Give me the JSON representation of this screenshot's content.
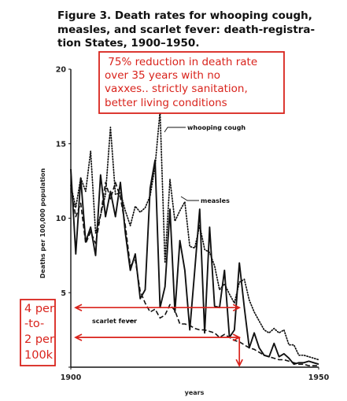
{
  "chart_data": {
    "type": "line",
    "title_lines": [
      "Figure 3.  Death rates for whooping cough,",
      "measles, and scarlet fever: death-registra-",
      "tion States, 1900–1950."
    ],
    "xlabel": "years",
    "ylabel": "Deaths per 100,000 population",
    "xlim": [
      1900,
      1950
    ],
    "ylim": [
      0,
      20
    ],
    "x_ticks": [
      1900,
      1950
    ],
    "y_ticks": [
      0,
      5,
      10,
      15,
      20
    ],
    "grid": false,
    "series": [
      {
        "name": "whooping cough",
        "style": "dotted",
        "x": [
          1900,
          1901,
          1902,
          1903,
          1904,
          1905,
          1906,
          1907,
          1908,
          1909,
          1910,
          1911,
          1912,
          1913,
          1914,
          1915,
          1916,
          1917,
          1918,
          1919,
          1920,
          1921,
          1922,
          1923,
          1924,
          1925,
          1926,
          1927,
          1928,
          1929,
          1930,
          1931,
          1932,
          1933,
          1934,
          1935,
          1936,
          1937,
          1938,
          1939,
          1940,
          1941,
          1942,
          1943,
          1944,
          1945,
          1946,
          1947,
          1948,
          1949,
          1950
        ],
        "values": [
          12.2,
          10.7,
          12.7,
          11.8,
          14.5,
          9.0,
          10.2,
          11.6,
          16.1,
          11.6,
          11.7,
          10.5,
          9.5,
          10.8,
          10.4,
          10.7,
          11.5,
          13.5,
          17.2,
          7.0,
          12.6,
          9.8,
          10.5,
          11.1,
          8.1,
          8.0,
          9.5,
          7.9,
          7.7,
          6.8,
          5.2,
          5.6,
          4.9,
          4.3,
          5.7,
          5.9,
          4.5,
          3.7,
          3.1,
          2.5,
          2.3,
          2.6,
          2.3,
          2.5,
          1.5,
          1.5,
          0.8,
          0.8,
          0.7,
          0.6,
          0.5
        ]
      },
      {
        "name": "measles",
        "style": "solid",
        "x": [
          1900,
          1901,
          1902,
          1903,
          1904,
          1905,
          1906,
          1907,
          1908,
          1909,
          1910,
          1911,
          1912,
          1913,
          1914,
          1915,
          1916,
          1917,
          1918,
          1919,
          1920,
          1921,
          1922,
          1923,
          1924,
          1925,
          1926,
          1927,
          1928,
          1929,
          1930,
          1931,
          1932,
          1933,
          1934,
          1935,
          1936,
          1937,
          1938,
          1939,
          1940,
          1941,
          1942,
          1943,
          1944,
          1945,
          1946,
          1947,
          1948,
          1949,
          1950
        ],
        "values": [
          13.3,
          7.6,
          12.7,
          8.4,
          9.4,
          7.5,
          12.9,
          10.1,
          11.8,
          10.1,
          12.4,
          9.0,
          6.5,
          7.6,
          4.6,
          5.2,
          12.0,
          13.9,
          4.0,
          5.4,
          10.6,
          3.7,
          8.5,
          6.5,
          2.5,
          6.5,
          10.6,
          2.3,
          9.4,
          4.1,
          4.0,
          6.5,
          2.0,
          2.5,
          7.0,
          4.0,
          1.3,
          2.3,
          1.3,
          0.8,
          0.7,
          1.6,
          0.7,
          0.9,
          0.6,
          0.2,
          0.3,
          0.3,
          0.4,
          0.3,
          0.2
        ]
      },
      {
        "name": "scarlet fever",
        "style": "dashed",
        "x": [
          1900,
          1901,
          1902,
          1903,
          1904,
          1905,
          1906,
          1907,
          1908,
          1909,
          1910,
          1911,
          1912,
          1913,
          1914,
          1915,
          1916,
          1917,
          1918,
          1919,
          1920,
          1921,
          1922,
          1923,
          1924,
          1925,
          1926,
          1927,
          1928,
          1929,
          1930,
          1931,
          1932,
          1933,
          1934,
          1935,
          1936,
          1937,
          1938,
          1939,
          1940,
          1941,
          1942,
          1943,
          1944,
          1945,
          1946,
          1947,
          1948,
          1949,
          1950
        ],
        "values": [
          12.0,
          10.1,
          11.0,
          8.3,
          9.1,
          8.3,
          10.2,
          12.4,
          11.3,
          12.4,
          11.4,
          9.5,
          6.8,
          7.2,
          5.1,
          4.3,
          3.7,
          3.9,
          3.3,
          3.5,
          4.2,
          3.8,
          2.9,
          2.9,
          2.8,
          2.6,
          2.5,
          2.5,
          2.4,
          2.3,
          2.0,
          2.2,
          2.0,
          1.8,
          1.7,
          1.5,
          1.3,
          1.2,
          1.0,
          0.8,
          0.7,
          0.6,
          0.5,
          0.5,
          0.4,
          0.3,
          0.2,
          0.2,
          0.1,
          0.1,
          0.1
        ]
      }
    ],
    "series_labels": [
      "whooping cough",
      "measles",
      "scarlet fever"
    ],
    "annotations": {
      "top_box_lines": [
        " 75% reduction in death rate",
        "over 35 years with no",
        "vaxxes.. strictly sanitation,",
        "better living conditions"
      ],
      "left_box_lines": [
        "4 per",
        "-to-",
        "2 per",
        "100k"
      ],
      "arrow_levels": [
        4,
        2
      ],
      "arrow_year": 1934
    }
  },
  "colors": {
    "annotation": "#d9231c",
    "ink": "#111111"
  }
}
